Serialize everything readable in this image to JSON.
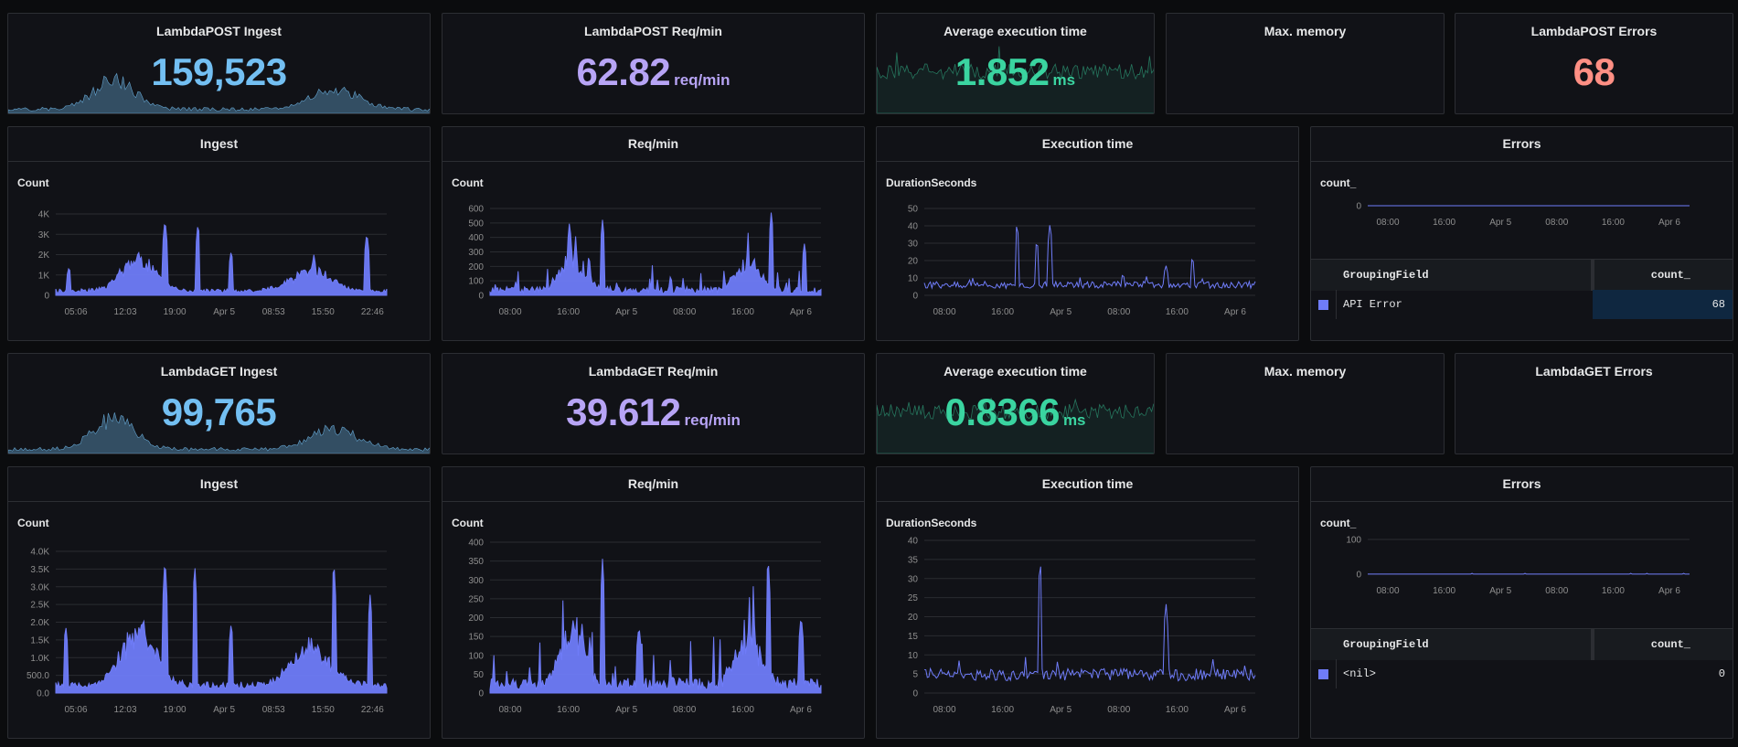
{
  "colors": {
    "ingest": "#73bff2",
    "reqmin": "#b7a4f5",
    "exec": "#3ad4a0",
    "errors": "#ff8f84",
    "graph": "#6f7cf8",
    "table_highlight": "#0f2740"
  },
  "sections": [
    {
      "stats": {
        "ingest": {
          "title": "LambdaPOST Ingest",
          "value": "159,523"
        },
        "reqmin": {
          "title": "LambdaPOST Req/min",
          "value": "62.82",
          "unit": "req/min"
        },
        "exec": {
          "title": "Average execution time",
          "value": "1.852",
          "unit": "ms"
        },
        "memory": {
          "title": "Max. memory"
        },
        "errors": {
          "title": "LambdaPOST Errors",
          "value": "68"
        }
      },
      "graphs": {
        "ingest": {
          "title": "Ingest",
          "ylabel": "Count",
          "yticks": [
            "4K",
            "3K",
            "2K",
            "1K",
            "0"
          ],
          "xticks": [
            "05:06",
            "12:03",
            "19:00",
            "Apr 5",
            "08:53",
            "15:50",
            "22:46"
          ]
        },
        "reqmin": {
          "title": "Req/min",
          "ylabel": "Count",
          "yticks": [
            "600",
            "500",
            "400",
            "300",
            "200",
            "100",
            "0"
          ],
          "xticks": [
            "08:00",
            "16:00",
            "Apr 5",
            "08:00",
            "16:00",
            "Apr 6"
          ]
        },
        "exec": {
          "title": "Execution time",
          "ylabel": "DurationSeconds",
          "yticks": [
            "50",
            "40",
            "30",
            "20",
            "10",
            "0"
          ],
          "xticks": [
            "08:00",
            "16:00",
            "Apr 5",
            "08:00",
            "16:00",
            "Apr 6"
          ]
        },
        "errors": {
          "title": "Errors",
          "ylabel": "count_",
          "yticks": [
            "0"
          ],
          "xticks": [
            "08:00",
            "16:00",
            "Apr 5",
            "08:00",
            "16:00",
            "Apr 6"
          ],
          "table": {
            "col1": "GroupingField",
            "col2": "count_",
            "rows": [
              {
                "field": "API Error",
                "count": "68"
              }
            ]
          }
        }
      }
    },
    {
      "stats": {
        "ingest": {
          "title": "LambdaGET Ingest",
          "value": "99,765"
        },
        "reqmin": {
          "title": "LambdaGET Req/min",
          "value": "39.612",
          "unit": "req/min"
        },
        "exec": {
          "title": "Average execution time",
          "value": "0.8366",
          "unit": "ms"
        },
        "memory": {
          "title": "Max. memory"
        },
        "errors": {
          "title": "LambdaGET Errors"
        }
      },
      "graphs": {
        "ingest": {
          "title": "Ingest",
          "ylabel": "Count",
          "yticks": [
            "4.0K",
            "3.5K",
            "3.0K",
            "2.5K",
            "2.0K",
            "1.5K",
            "1.0K",
            "500.0",
            "0.0"
          ],
          "xticks": [
            "05:06",
            "12:03",
            "19:00",
            "Apr 5",
            "08:53",
            "15:50",
            "22:46"
          ]
        },
        "reqmin": {
          "title": "Req/min",
          "ylabel": "Count",
          "yticks": [
            "400",
            "350",
            "300",
            "250",
            "200",
            "150",
            "100",
            "50",
            "0"
          ],
          "xticks": [
            "08:00",
            "16:00",
            "Apr 5",
            "08:00",
            "16:00",
            "Apr 6"
          ]
        },
        "exec": {
          "title": "Execution time",
          "ylabel": "DurationSeconds",
          "yticks": [
            "40",
            "35",
            "30",
            "25",
            "20",
            "15",
            "10",
            "5",
            "0"
          ],
          "xticks": [
            "08:00",
            "16:00",
            "Apr 5",
            "08:00",
            "16:00",
            "Apr 6"
          ]
        },
        "errors": {
          "title": "Errors",
          "ylabel": "count_",
          "yticks": [
            "100",
            "0"
          ],
          "xticks": [
            "08:00",
            "16:00",
            "Apr 5",
            "08:00",
            "16:00",
            "Apr 6"
          ],
          "table": {
            "col1": "GroupingField",
            "col2": "count_",
            "rows": [
              {
                "field": "<nil>",
                "count": "0"
              }
            ]
          }
        }
      }
    }
  ]
}
